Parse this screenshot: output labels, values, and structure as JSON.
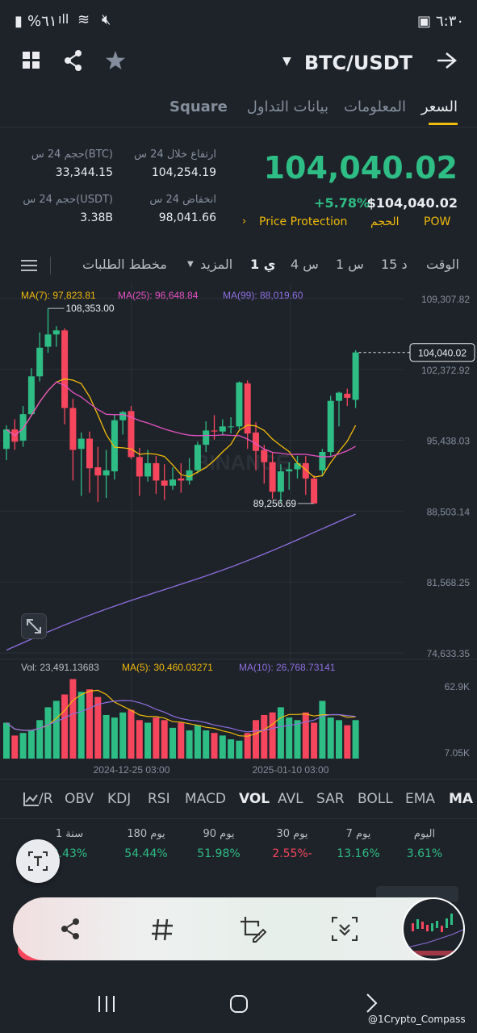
{
  "status_bar": {
    "time": "٦:٣٠",
    "battery": "%٦١"
  },
  "header": {
    "pair": "BTC/USDT"
  },
  "tabs": [
    {
      "label": "السعر",
      "active": true
    },
    {
      "label": "المعلومات"
    },
    {
      "label": "بيانات التداول"
    },
    {
      "label": "Square"
    }
  ],
  "ticker": {
    "price": "104,040.02",
    "change_pct": "+5.78%",
    "price_usd": "$104,040.02",
    "high_label": "ارتفاع خلال 24 س",
    "high_value": "104,254.19",
    "low_label": "انخفاض 24 س",
    "low_value": "98,041.66",
    "vol_btc_label": "حجم 24 س(BTC)",
    "vol_btc_value": "33,344.15",
    "vol_usdt_label": "حجم 24 س(USDT)",
    "vol_usdt_value": "3.38B",
    "tags": [
      "Price Protection",
      "الحجم",
      "POW"
    ]
  },
  "timeframes": [
    "الوقت",
    "15 د",
    "1 س",
    "4 س",
    "1 ي",
    "المزيد",
    "مخطط الطلبات"
  ],
  "active_timeframe": "1 ي",
  "chart_data": {
    "type": "candlestick",
    "ma_labels": [
      "MA(7): 97,823.81",
      "MA(25): 96,648.84",
      "MA(99): 88,019.60"
    ],
    "price_axis": [
      "109,307.82",
      "102,372.92",
      "95,438.03",
      "88,503.14",
      "81,568.25",
      "74,633.35"
    ],
    "current_price_tag": "104,040.02",
    "high_marker": "108,353.00",
    "low_marker": "89,256.69",
    "ylim": [
      74633.35,
      109307.82
    ],
    "candles": [
      [
        94600,
        96500,
        96900,
        93500
      ],
      [
        96500,
        95300,
        97500,
        94500
      ],
      [
        95400,
        98000,
        98800,
        94800
      ],
      [
        98000,
        101700,
        102500,
        97800
      ],
      [
        101700,
        104500,
        106000,
        101200
      ],
      [
        104600,
        105800,
        108353,
        104000
      ],
      [
        105800,
        106200,
        106600,
        104600
      ],
      [
        106200,
        98600,
        106400,
        97000
      ],
      [
        98600,
        94500,
        99500,
        91500
      ],
      [
        94600,
        95600,
        96200,
        90000
      ],
      [
        95600,
        92700,
        96300,
        90300
      ],
      [
        92800,
        92000,
        94800,
        89400
      ],
      [
        92000,
        92500,
        94500,
        89800
      ],
      [
        92400,
        97400,
        97900,
        91600
      ],
      [
        97400,
        98200,
        98300,
        96000
      ],
      [
        98300,
        93800,
        98800,
        93600
      ],
      [
        93800,
        91900,
        94700,
        90000
      ],
      [
        91900,
        93200,
        94500,
        91400
      ],
      [
        93200,
        91500,
        93900,
        90200
      ],
      [
        91500,
        91000,
        93100,
        89600
      ],
      [
        91000,
        91600,
        92800,
        90600
      ],
      [
        91700,
        91500,
        93200,
        90300
      ],
      [
        91500,
        92500,
        93700,
        91100
      ],
      [
        92500,
        95000,
        95300,
        92200
      ],
      [
        95000,
        96400,
        97300,
        94300
      ],
      [
        96400,
        96300,
        97900,
        95500
      ],
      [
        96300,
        96800,
        97500,
        95900
      ],
      [
        96800,
        96800,
        97700,
        96100
      ],
      [
        96800,
        101100,
        101200,
        96500
      ],
      [
        101000,
        96100,
        101300,
        94600
      ],
      [
        96200,
        94400,
        97200,
        92500
      ],
      [
        94500,
        93300,
        95000,
        91200
      ],
      [
        93300,
        90400,
        94200,
        89700
      ],
      [
        90400,
        92400,
        93100,
        89300
      ],
      [
        92400,
        92600,
        93300,
        90600
      ],
      [
        92600,
        93200,
        93900,
        91700
      ],
      [
        93200,
        91700,
        93900,
        90100
      ],
      [
        91700,
        89256.69,
        92000,
        89256.69
      ],
      [
        92500,
        94300,
        94600,
        91900
      ],
      [
        94300,
        99300,
        99800,
        93800
      ],
      [
        99300,
        100100,
        100200,
        96800
      ],
      [
        100000,
        99600,
        100500,
        98800
      ],
      [
        99400,
        104040.02,
        104254.19,
        98600
      ]
    ],
    "volume": {
      "labels": [
        "Vol: 23,491.13683",
        "MA(5): 30,460.03271",
        "MA(10): 26,768.73141"
      ],
      "axis": [
        "62.9K",
        "7.05K"
      ],
      "values": [
        28,
        18,
        20,
        22,
        30,
        40,
        45,
        50,
        62,
        52,
        54,
        48,
        34,
        32,
        36,
        38,
        30,
        28,
        32,
        30,
        24,
        28,
        22,
        26,
        22,
        20,
        18,
        15,
        14,
        20,
        30,
        34,
        36,
        40,
        32,
        30,
        36,
        28,
        45,
        32,
        30,
        26,
        30
      ]
    },
    "date_labels": [
      "2024-12-25 03:00",
      "2025-01-10 03:00"
    ]
  },
  "indicators": [
    "MA",
    "EMA",
    "BOLL",
    "SAR",
    "AVL",
    "VOL",
    "MACD",
    "RSI",
    "KDJ",
    "OBV",
    "/R"
  ],
  "active_indicator": "VOL",
  "performance": [
    {
      "label": "اليوم",
      "value": "3.61%",
      "pos": true
    },
    {
      "label": "7 يوم",
      "value": "13.16%",
      "pos": true
    },
    {
      "label": "30 يوم",
      "value": "2.55%-",
      "pos": false
    },
    {
      "label": "90 يوم",
      "value": "51.98%",
      "pos": true
    },
    {
      "label": "180 يوم",
      "value": "54.44%",
      "pos": true
    },
    {
      "label": "1 سنة",
      "value": "3.43%",
      "pos": true
    }
  ],
  "watermark": "@1Crypto_Compass",
  "colors": {
    "up": "#2ebd85",
    "down": "#f6465d",
    "accent": "#f0b90b",
    "ma7": "#f0b90b",
    "ma25": "#e552c3",
    "ma99": "#8d6fe0"
  }
}
